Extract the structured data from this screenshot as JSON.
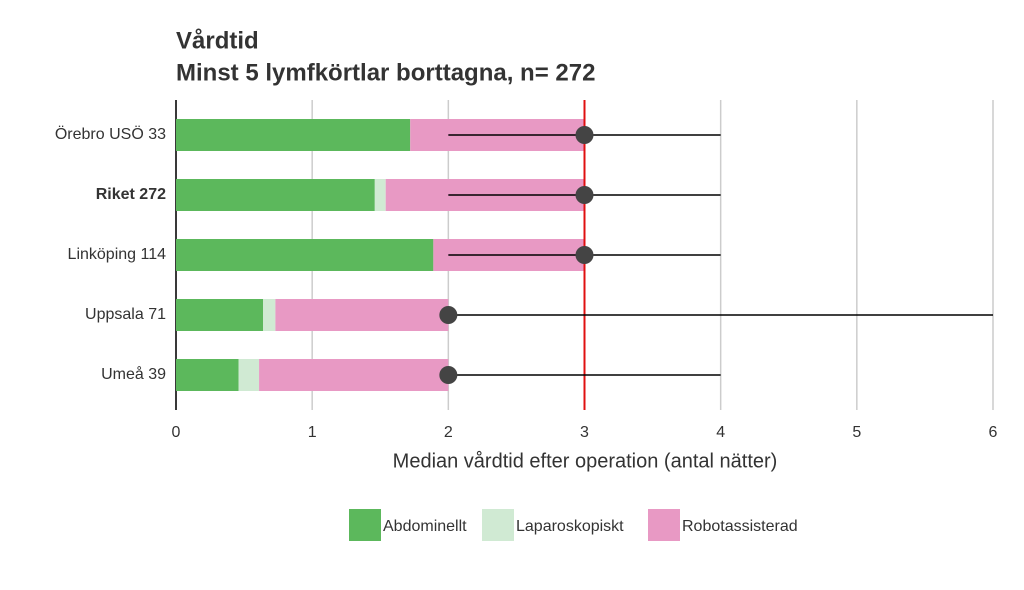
{
  "chart_data": {
    "type": "stacked_hbar",
    "title": "Vårdtid",
    "subtitle": "Minst 5 lymfkörtlar borttagna, n= 272",
    "x_label": "Median vårdtid efter operation (antal nätter)",
    "categories": [
      "Örebro USÖ 33",
      "Riket 272",
      "Linköping 114",
      "Uppsala 71",
      "Umeå 39"
    ],
    "bold_categories": [
      1
    ],
    "series": [
      {
        "name": "Abdominellt",
        "color": "#5cb85c",
        "values": [
          1.72,
          1.46,
          1.89,
          0.64,
          0.46
        ]
      },
      {
        "name": "Laparoskopiskt",
        "color": "#d0ead3",
        "values": [
          0,
          0.08,
          0,
          0.09,
          0.15
        ]
      },
      {
        "name": "Robotassisterad",
        "color": "#e899c4",
        "values": [
          1.28,
          1.46,
          1.11,
          1.27,
          1.39
        ]
      }
    ],
    "median": [
      3,
      3,
      3,
      2,
      2
    ],
    "low": [
      2,
      2,
      2,
      2,
      2
    ],
    "high": [
      4,
      4,
      4,
      6,
      4
    ],
    "reference_line": 3,
    "reference_color": "#e01010",
    "xlim": [
      0,
      6
    ],
    "xticks": [
      0,
      1,
      2,
      3,
      4,
      5,
      6
    ],
    "grid": true,
    "legend": "bottom"
  }
}
